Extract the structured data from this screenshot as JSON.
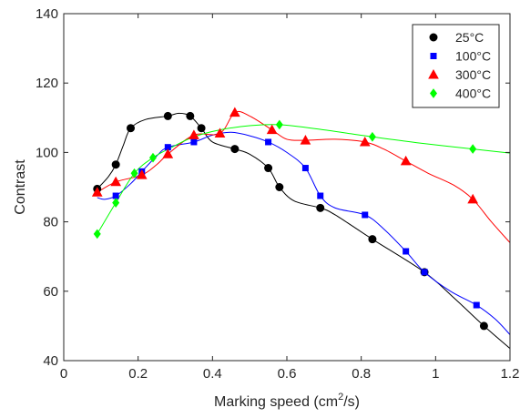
{
  "chart_data": {
    "type": "scatter",
    "title": "",
    "xlabel": "Marking speed (cm²/s)",
    "xlabel_main": "Marking speed (cm",
    "xlabel_sup": "2",
    "xlabel_end": "/s)",
    "ylabel": "Contrast",
    "xlim": [
      0,
      1.2
    ],
    "ylim": [
      40,
      140
    ],
    "xticks": [
      0,
      0.2,
      0.4,
      0.6,
      0.8,
      1,
      1.2
    ],
    "xtick_labels": [
      "0",
      "0.2",
      "0.4",
      "0.6",
      "0.8",
      "1",
      "1.2"
    ],
    "yticks": [
      40,
      60,
      80,
      100,
      120,
      140
    ],
    "ytick_labels": [
      "40",
      "60",
      "80",
      "100",
      "120",
      "140"
    ],
    "grid": false,
    "legend_position": "top-right",
    "series": [
      {
        "name": "25°C",
        "color": "#000000",
        "marker": "circle",
        "x": [
          0.09,
          0.14,
          0.18,
          0.28,
          0.34,
          0.37,
          0.46,
          0.55,
          0.58,
          0.69,
          0.83,
          0.97,
          1.13
        ],
        "y": [
          89.5,
          96.5,
          107,
          110.5,
          110.5,
          107,
          101,
          95.5,
          90,
          84,
          75,
          65.5,
          50
        ],
        "curve": [
          [
            0.09,
            89.5
          ],
          [
            0.12,
            93
          ],
          [
            0.14,
            96.5
          ],
          [
            0.16,
            102
          ],
          [
            0.18,
            107
          ],
          [
            0.22,
            109.5
          ],
          [
            0.28,
            110.5
          ],
          [
            0.31,
            111.3
          ],
          [
            0.34,
            110.5
          ],
          [
            0.37,
            107
          ],
          [
            0.4,
            103
          ],
          [
            0.46,
            101
          ],
          [
            0.5,
            99.5
          ],
          [
            0.55,
            95.5
          ],
          [
            0.58,
            90
          ],
          [
            0.62,
            86
          ],
          [
            0.69,
            84
          ],
          [
            0.73,
            82
          ],
          [
            0.83,
            75
          ],
          [
            0.97,
            65.5
          ],
          [
            1.05,
            58
          ],
          [
            1.13,
            50
          ],
          [
            1.2,
            43.5
          ]
        ]
      },
      {
        "name": "100°C",
        "color": "#0000ff",
        "marker": "square",
        "x": [
          0.14,
          0.21,
          0.28,
          0.35,
          0.55,
          0.65,
          0.69,
          0.81,
          0.92,
          0.97,
          1.11
        ],
        "y": [
          87.5,
          94.5,
          101.5,
          103,
          103,
          95.5,
          87.5,
          82,
          71.5,
          65.5,
          56
        ],
        "curve": [
          [
            0.09,
            87
          ],
          [
            0.11,
            86.5
          ],
          [
            0.14,
            87.5
          ],
          [
            0.18,
            91
          ],
          [
            0.21,
            94.5
          ],
          [
            0.25,
            99
          ],
          [
            0.28,
            101.5
          ],
          [
            0.35,
            103
          ],
          [
            0.4,
            105
          ],
          [
            0.45,
            105.8
          ],
          [
            0.5,
            104.8
          ],
          [
            0.55,
            103
          ],
          [
            0.6,
            100
          ],
          [
            0.65,
            95.5
          ],
          [
            0.69,
            87.5
          ],
          [
            0.73,
            84
          ],
          [
            0.81,
            82
          ],
          [
            0.86,
            78
          ],
          [
            0.92,
            71.5
          ],
          [
            0.97,
            65.5
          ],
          [
            1.04,
            60
          ],
          [
            1.11,
            56
          ],
          [
            1.16,
            52
          ],
          [
            1.2,
            47.5
          ]
        ]
      },
      {
        "name": "300°C",
        "color": "#ff0000",
        "marker": "triangle",
        "x": [
          0.09,
          0.14,
          0.21,
          0.28,
          0.35,
          0.42,
          0.46,
          0.56,
          0.65,
          0.81,
          0.92,
          1.1
        ],
        "y": [
          88.5,
          91.5,
          93.5,
          99.5,
          105,
          105.5,
          111.5,
          106.5,
          103.5,
          103,
          97.5,
          86.5
        ],
        "curve": [
          [
            0.09,
            88.5
          ],
          [
            0.14,
            91.5
          ],
          [
            0.21,
            93.5
          ],
          [
            0.25,
            96.5
          ],
          [
            0.28,
            99.5
          ],
          [
            0.35,
            105
          ],
          [
            0.42,
            105.5
          ],
          [
            0.46,
            111.5
          ],
          [
            0.5,
            110.5
          ],
          [
            0.56,
            106.5
          ],
          [
            0.6,
            103.8
          ],
          [
            0.65,
            103.5
          ],
          [
            0.73,
            103.8
          ],
          [
            0.81,
            103
          ],
          [
            0.86,
            101
          ],
          [
            0.92,
            97.5
          ],
          [
            0.98,
            94
          ],
          [
            1.05,
            90.5
          ],
          [
            1.1,
            86.5
          ],
          [
            1.15,
            80
          ],
          [
            1.2,
            74
          ]
        ]
      },
      {
        "name": "400°C",
        "color": "#00ff00",
        "marker": "diamond",
        "x": [
          0.09,
          0.14,
          0.19,
          0.24,
          0.58,
          0.83,
          1.1
        ],
        "y": [
          76.5,
          85.5,
          94,
          98.5,
          108,
          104.5,
          101
        ],
        "curve": [
          [
            0.09,
            76.5
          ],
          [
            0.14,
            85.5
          ],
          [
            0.19,
            94
          ],
          [
            0.24,
            98.5
          ],
          [
            0.3,
            102
          ],
          [
            0.35,
            104.5
          ],
          [
            0.42,
            106.5
          ],
          [
            0.5,
            107.7
          ],
          [
            0.58,
            108
          ],
          [
            0.7,
            106.5
          ],
          [
            0.83,
            104.5
          ],
          [
            0.95,
            102.8
          ],
          [
            1.1,
            101
          ],
          [
            1.2,
            99.8
          ]
        ]
      }
    ]
  }
}
